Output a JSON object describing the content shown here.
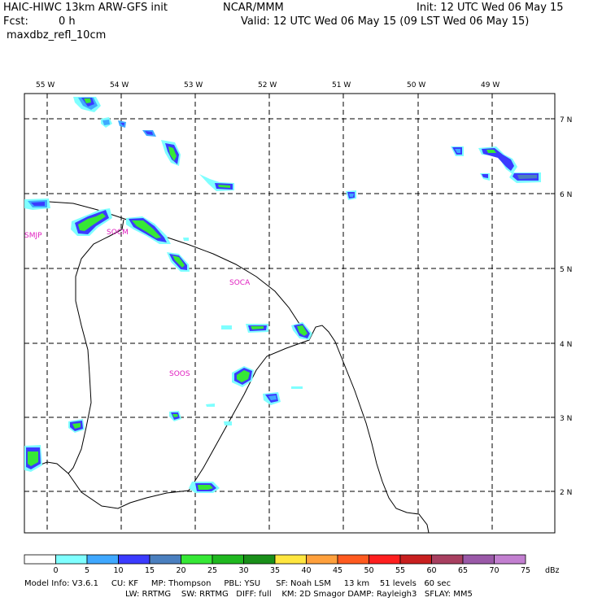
{
  "header": {
    "model_title": "HAIC-HIWC 13km ARW-GFS init",
    "agency": "NCAR/MMM",
    "init": "Init: 12 UTC Wed 06 May 15",
    "fcst_label": "Fcst:",
    "fcst_value": "0 h",
    "valid": "Valid: 12 UTC Wed 06 May 15 (09 LST Wed 06 May 15)",
    "field": "maxdbz_refl_10cm"
  },
  "map": {
    "lon_labels": [
      "55 W",
      "54 W",
      "53 W",
      "52 W",
      "51 W",
      "50 W",
      "49 W"
    ],
    "lat_labels": [
      "7 N",
      "6 N",
      "5 N",
      "4 N",
      "3 N",
      "2 N"
    ],
    "stations": [
      "SMJP",
      "SOCM",
      "SOCA",
      "SOOS"
    ]
  },
  "colorbar": {
    "ticks": [
      "0",
      "5",
      "10",
      "15",
      "20",
      "25",
      "30",
      "35",
      "40",
      "45",
      "50",
      "55",
      "60",
      "65",
      "70",
      "75"
    ],
    "unit": "dBz",
    "colors": [
      "#ffffff",
      "#7fffff",
      "#3fa8ff",
      "#3b3bff",
      "#4a7fbf",
      "#36e836",
      "#1fb81f",
      "#198f19",
      "#ffe63f",
      "#ffa03c",
      "#ff5a1f",
      "#ff1f1f",
      "#c81f1f",
      "#a83f60",
      "#9a59a8",
      "#c27fd0"
    ]
  },
  "footer": {
    "line1": "Model Info: V3.6.1     CU: KF     MP: Thompson     PBL: YSU      SF: Noah LSM     13 km    51 levels   60 sec",
    "line2": "LW: RRTMG    SW: RRTMG   DIFF: full    KM: 2D Smagor DAMP: Rayleigh3   SFLAY: MM5"
  }
}
